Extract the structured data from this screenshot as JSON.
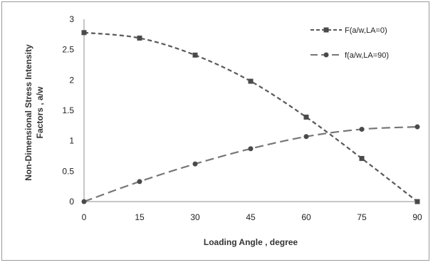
{
  "chart_data": {
    "type": "line",
    "title": "",
    "xlabel": "Loading Angle , degree",
    "ylabel_lines": [
      "Non-Dimensional Stress Intensity",
      "Factors , a/w"
    ],
    "x": [
      0,
      15,
      30,
      45,
      60,
      75,
      90
    ],
    "xlim": [
      0,
      90
    ],
    "ylim": [
      0,
      3
    ],
    "x_ticks": [
      0,
      15,
      30,
      45,
      60,
      75,
      90
    ],
    "y_ticks": [
      0,
      0.5,
      1,
      1.5,
      2,
      2.5,
      3
    ],
    "y_tick_labels": [
      "0",
      "0.5",
      "1",
      "1.5",
      "2",
      "2.5",
      "3"
    ],
    "grid": false,
    "legend_position": "top-right",
    "series": [
      {
        "name": "F(a/w,LA=0)",
        "values": [
          2.78,
          2.69,
          2.41,
          1.98,
          1.39,
          0.71,
          0.0
        ],
        "color": "#595959",
        "marker": "square",
        "dash": "short"
      },
      {
        "name": "f(a/w,LA=90)",
        "values": [
          0.0,
          0.33,
          0.62,
          0.87,
          1.07,
          1.19,
          1.23
        ],
        "color": "#777777",
        "marker": "circle",
        "dash": "long"
      }
    ]
  }
}
